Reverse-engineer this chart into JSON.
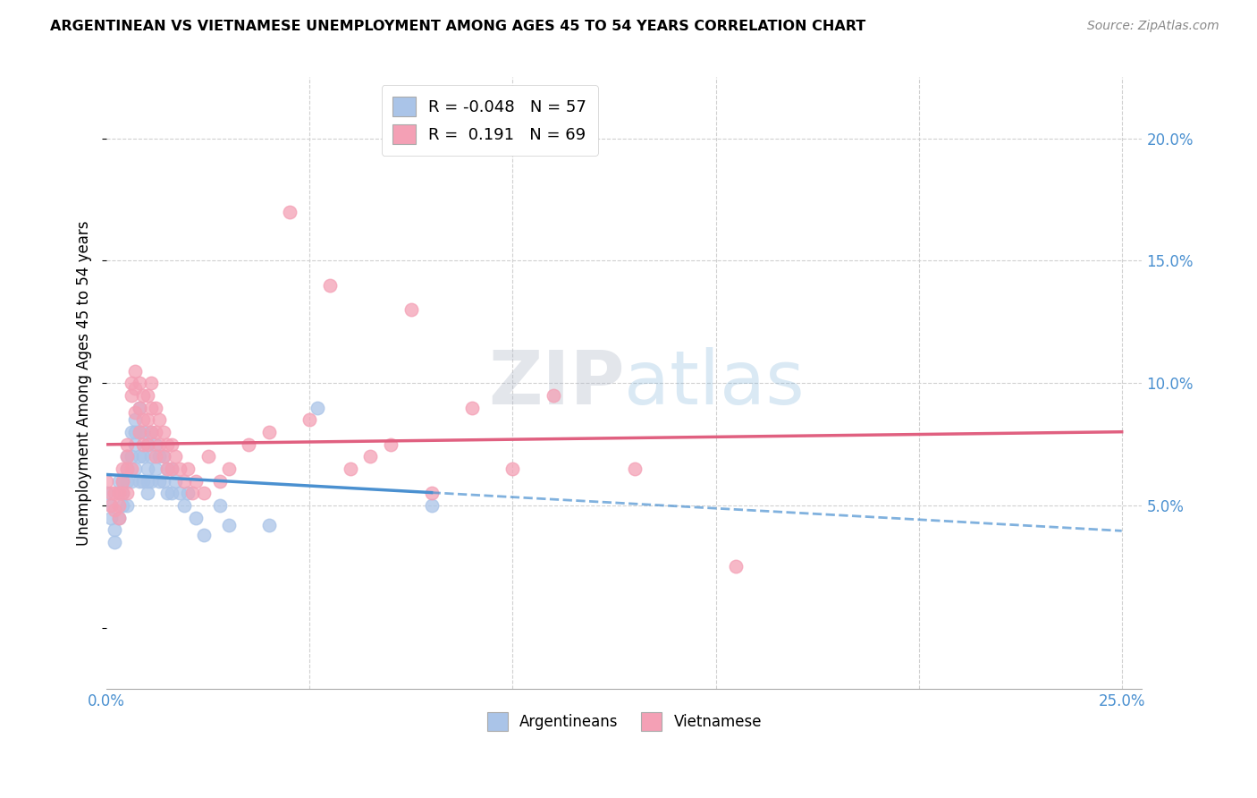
{
  "title": "ARGENTINEAN VS VIETNAMESE UNEMPLOYMENT AMONG AGES 45 TO 54 YEARS CORRELATION CHART",
  "source": "Source: ZipAtlas.com",
  "ylabel": "Unemployment Among Ages 45 to 54 years",
  "xlim": [
    0.0,
    0.255
  ],
  "ylim": [
    -0.025,
    0.225
  ],
  "argentinean_color": "#aac4e8",
  "vietnamese_color": "#f4a0b5",
  "line1_color": "#4a90d0",
  "line2_color": "#e06080",
  "r1": "-0.048",
  "n1": "57",
  "r2": "0.191",
  "n2": "69",
  "arg_line_solid_end": 0.08,
  "argentinean_x": [
    0.0,
    0.001,
    0.001,
    0.002,
    0.002,
    0.003,
    0.003,
    0.003,
    0.004,
    0.004,
    0.004,
    0.005,
    0.005,
    0.005,
    0.005,
    0.006,
    0.006,
    0.006,
    0.007,
    0.007,
    0.007,
    0.007,
    0.008,
    0.008,
    0.008,
    0.008,
    0.009,
    0.009,
    0.009,
    0.01,
    0.01,
    0.01,
    0.01,
    0.011,
    0.011,
    0.011,
    0.012,
    0.012,
    0.013,
    0.013,
    0.014,
    0.014,
    0.015,
    0.015,
    0.016,
    0.016,
    0.017,
    0.018,
    0.019,
    0.02,
    0.022,
    0.024,
    0.028,
    0.03,
    0.04,
    0.052,
    0.08
  ],
  "argentinean_y": [
    0.055,
    0.05,
    0.045,
    0.04,
    0.035,
    0.06,
    0.055,
    0.045,
    0.06,
    0.055,
    0.05,
    0.07,
    0.065,
    0.06,
    0.05,
    0.08,
    0.07,
    0.06,
    0.085,
    0.08,
    0.075,
    0.065,
    0.09,
    0.08,
    0.07,
    0.06,
    0.08,
    0.07,
    0.06,
    0.075,
    0.065,
    0.06,
    0.055,
    0.08,
    0.07,
    0.06,
    0.075,
    0.065,
    0.07,
    0.06,
    0.07,
    0.06,
    0.065,
    0.055,
    0.065,
    0.055,
    0.06,
    0.055,
    0.05,
    0.055,
    0.045,
    0.038,
    0.05,
    0.042,
    0.042,
    0.09,
    0.05
  ],
  "vietnamese_x": [
    0.0,
    0.001,
    0.001,
    0.002,
    0.002,
    0.003,
    0.003,
    0.003,
    0.004,
    0.004,
    0.004,
    0.005,
    0.005,
    0.005,
    0.005,
    0.006,
    0.006,
    0.006,
    0.007,
    0.007,
    0.007,
    0.008,
    0.008,
    0.008,
    0.009,
    0.009,
    0.009,
    0.01,
    0.01,
    0.01,
    0.011,
    0.011,
    0.011,
    0.012,
    0.012,
    0.012,
    0.013,
    0.013,
    0.014,
    0.014,
    0.015,
    0.015,
    0.016,
    0.016,
    0.017,
    0.018,
    0.019,
    0.02,
    0.021,
    0.022,
    0.024,
    0.025,
    0.028,
    0.03,
    0.035,
    0.04,
    0.045,
    0.05,
    0.055,
    0.06,
    0.065,
    0.07,
    0.075,
    0.08,
    0.09,
    0.1,
    0.11,
    0.13,
    0.155
  ],
  "vietnamese_y": [
    0.06,
    0.055,
    0.05,
    0.055,
    0.048,
    0.055,
    0.05,
    0.045,
    0.065,
    0.06,
    0.055,
    0.075,
    0.07,
    0.065,
    0.055,
    0.1,
    0.095,
    0.065,
    0.105,
    0.098,
    0.088,
    0.1,
    0.09,
    0.08,
    0.095,
    0.085,
    0.075,
    0.095,
    0.085,
    0.075,
    0.1,
    0.09,
    0.08,
    0.09,
    0.08,
    0.07,
    0.085,
    0.075,
    0.08,
    0.07,
    0.075,
    0.065,
    0.075,
    0.065,
    0.07,
    0.065,
    0.06,
    0.065,
    0.055,
    0.06,
    0.055,
    0.07,
    0.06,
    0.065,
    0.075,
    0.08,
    0.17,
    0.085,
    0.14,
    0.065,
    0.07,
    0.075,
    0.13,
    0.055,
    0.09,
    0.065,
    0.095,
    0.065,
    0.025
  ]
}
